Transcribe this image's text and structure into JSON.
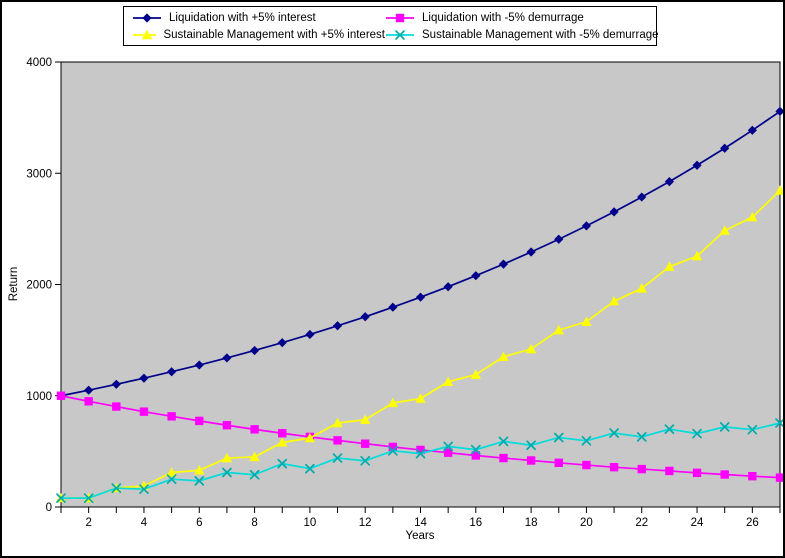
{
  "chart_data": {
    "type": "line",
    "title": "",
    "xlabel": "Years",
    "ylabel": "Return",
    "xlim": [
      1,
      27
    ],
    "ylim": [
      0,
      4000
    ],
    "grid": false,
    "plot_background": "#C8C8C8",
    "figure_background": "#FFFFFF",
    "legend_position": "top-center",
    "x_tick_label_years": [
      2,
      4,
      6,
      8,
      10,
      12,
      14,
      16,
      18,
      20,
      22,
      24,
      26
    ],
    "y_ticks": [
      0,
      1000,
      2000,
      3000,
      4000
    ],
    "x": [
      1,
      2,
      3,
      4,
      5,
      6,
      7,
      8,
      9,
      10,
      11,
      12,
      13,
      14,
      15,
      16,
      17,
      18,
      19,
      20,
      21,
      22,
      23,
      24,
      25,
      26,
      27
    ],
    "series": [
      {
        "name": "Liquidation with +5% interest",
        "color": "#00008B",
        "marker_color": "#00008B",
        "marker": "diamond",
        "values": [
          1000,
          1050,
          1103,
          1158,
          1216,
          1276,
          1340,
          1407,
          1477,
          1551,
          1629,
          1710,
          1796,
          1886,
          1980,
          2079,
          2183,
          2292,
          2407,
          2527,
          2653,
          2786,
          2925,
          3072,
          3225,
          3386,
          3556
        ]
      },
      {
        "name": "Liquidation with -5% demurrage",
        "color": "#FF00FF",
        "marker_color": "#FF00FF",
        "marker": "square",
        "values": [
          1000,
          950,
          903,
          857,
          815,
          774,
          735,
          698,
          663,
          630,
          599,
          569,
          540,
          513,
          488,
          463,
          440,
          418,
          397,
          377,
          358,
          341,
          324,
          307,
          292,
          277,
          264
        ]
      },
      {
        "name": "Sustainable Management with +5% interest",
        "color": "#FFFF00",
        "marker_color": "#FFFF00",
        "marker": "triangle",
        "values": [
          80,
          80,
          170,
          190,
          310,
          330,
          440,
          450,
          580,
          620,
          755,
          785,
          935,
          975,
          1125,
          1190,
          1350,
          1420,
          1590,
          1665,
          1850,
          1965,
          2160,
          2255,
          2485,
          2605,
          2845
        ]
      },
      {
        "name": "Sustainable Management with -5% demurrage",
        "color": "#00DCDC",
        "marker_color": "#00ABAB",
        "marker": "x",
        "values": [
          80,
          80,
          170,
          160,
          250,
          235,
          310,
          290,
          390,
          345,
          440,
          415,
          505,
          480,
          545,
          515,
          590,
          555,
          625,
          595,
          665,
          630,
          700,
          660,
          720,
          695,
          755
        ]
      }
    ]
  }
}
